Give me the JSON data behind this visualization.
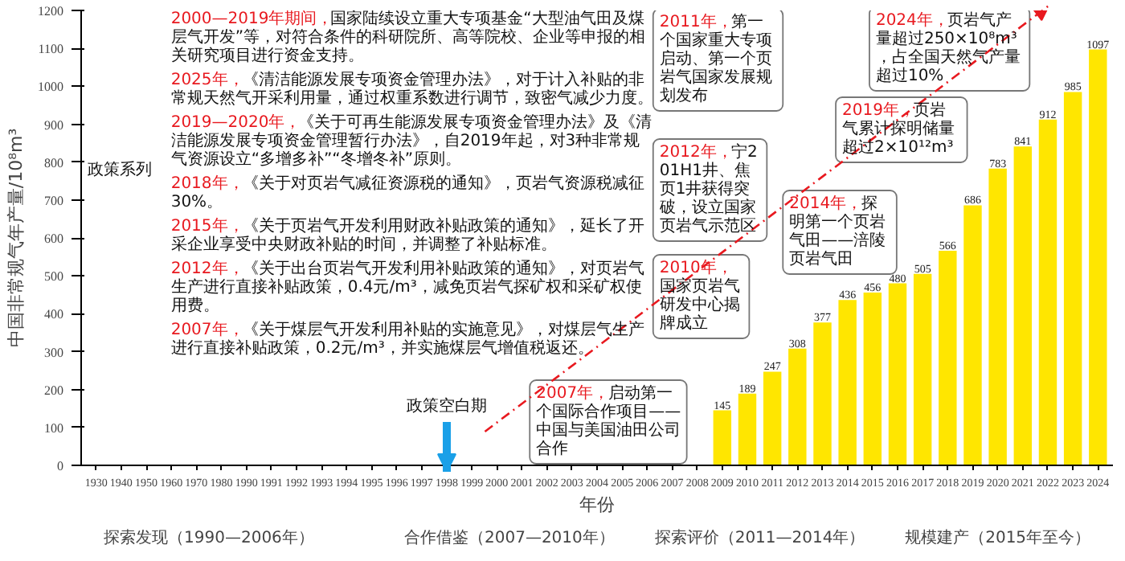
{
  "chart_data": {
    "type": "bar",
    "xlabel": "年份",
    "ylabel": "中国非常规气年产量/10⁸m³",
    "color": "#ffe600",
    "data_labels": true,
    "ylim": [
      0,
      1200
    ],
    "yticks": [
      0,
      100,
      200,
      300,
      400,
      500,
      600,
      700,
      800,
      900,
      1000,
      1100,
      1200
    ],
    "categories": [
      "1930",
      "1940",
      "1950",
      "1960",
      "1970",
      "1980",
      "1990",
      "1991",
      "1992",
      "1993",
      "1994",
      "1995",
      "1996",
      "1997",
      "1998",
      "1999",
      "2000",
      "2001",
      "2002",
      "2003",
      "2004",
      "2005",
      "2006",
      "2007",
      "2008",
      "2009",
      "2010",
      "2011",
      "2012",
      "2013",
      "2014",
      "2015",
      "2016",
      "2017",
      "2018",
      "2019",
      "2020",
      "2021",
      "2022",
      "2023",
      "2024"
    ],
    "values": [
      null,
      null,
      null,
      null,
      null,
      null,
      null,
      null,
      null,
      null,
      null,
      null,
      null,
      null,
      null,
      null,
      null,
      null,
      null,
      null,
      null,
      null,
      null,
      null,
      null,
      145,
      189,
      247,
      308,
      377,
      436,
      456,
      480,
      505,
      566,
      686,
      783,
      841,
      912,
      985,
      1097
    ],
    "annotations": [
      "2000—2019年期间，国家陆续设立重大专项基金“大型油气田及煤层气开发”等，对符合条件的科研院所、高等院校、企业等申报的相关研究项目进行资金支持。",
      "2025年，《清洁能源发展专项资金管理办法》，对于计入补贴的非常规天然气开采利用量，通过权重系数进行调节，致密气减少力度。",
      "2019—2020年，《关于可再生能源发展专项资金管理办法》及《清洁能源发展专项资金管理暂行办法》，自2019年起，对3种非常规气资源设立“多增多补”“冬增冬补”原则。",
      "2018年，《关于对页岩气减征资源税的通知》，页岩气资源税减征30%。",
      "2015年，《关于页岩气开发利用财政补贴政策的通知》，延长了开采企业享受中央财政补贴的时间，并调整了补贴标准。",
      "2012年，《关于出台页岩气开发利用补贴政策的通知》，对页岩气生产进行直接补贴政策，0.4元/m³，减免页岩气探矿权和采矿权使用费。",
      "2007年，《关于煤层气开发利用补贴的实施意见》，对煤层气生产进行直接补贴政策，0.2元/m³，并实施煤层气增值税返还。",
      "政策系列",
      "政策空白期",
      "探索发现（1990—2006年）",
      "合作借鉴（2007—2010年）",
      "探索评价（2011—2014年）",
      "规模建产（2015年至今）",
      "2007年，启动第一个国际合作项目——中国与美国油田公司合作",
      "2010年，国家页岩气研发中心揭牌成立",
      "2011年，第一个国家重大专项启动、第一个页岩气国家发展规划发布",
      "2012年，宁201H1井、焦页1井获得突破，设立国家页岩气示范区",
      "2014年，探明第一个页岩气田——涪陵页岩气田",
      "2019年，页岩气累计探明储量超过2×10¹²m³",
      "2024年，页岩气产量超过250×10⁸m³，占全国天然气产量超过10%"
    ]
  }
}
